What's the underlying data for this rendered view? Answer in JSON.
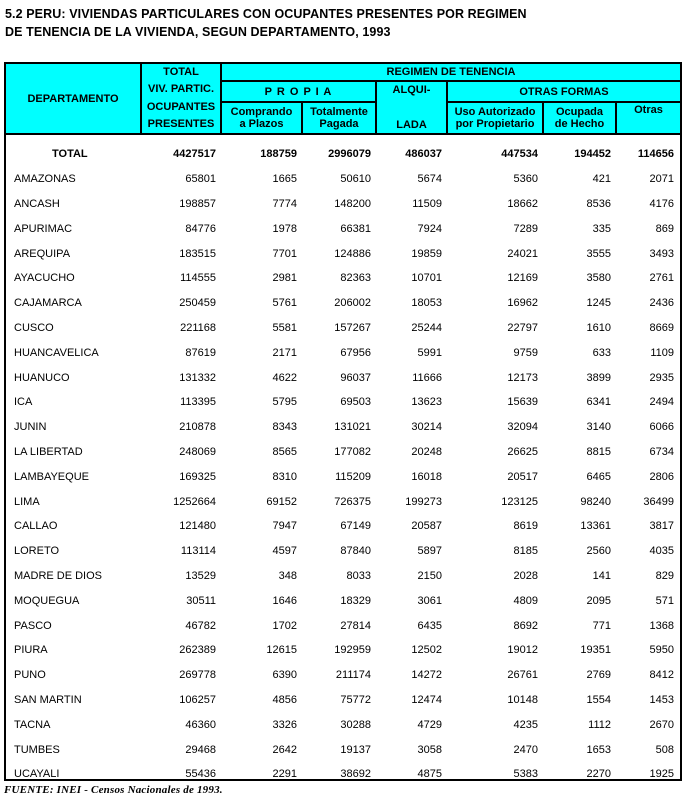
{
  "title": {
    "line1": "5.2 PERU: VIVIENDAS PARTICULARES CON OCUPANTES PRESENTES POR REGIMEN",
    "line2": "DE TENENCIA DE LA VIVIENDA, SEGUN DEPARTAMENTO, 1993"
  },
  "colors": {
    "header_bg": "#00FFFF",
    "border": "#000000",
    "body_bg": "#FFFFFF",
    "text": "#000000"
  },
  "table": {
    "header": {
      "departamento": "DEPARTAMENTO",
      "total_lines": [
        "TOTAL",
        "VIV. PARTIC.",
        "OCUPANTES",
        "PRESENTES"
      ],
      "regimen": "REGIMEN DE TENENCIA",
      "propia": "P R O P I A",
      "alquilada_top": "ALQUI-",
      "alquilada_bottom": "LADA",
      "otras_formas": "OTRAS FORMAS",
      "comprando_l1": "Comprando",
      "comprando_l2": "a Plazos",
      "totalmente_l1": "Totalmente",
      "totalmente_l2": "Pagada",
      "uso_l1": "Uso Autorizado",
      "uso_l2": "por Propietario",
      "ocupada_l1": "Ocupada",
      "ocupada_l2": "de Hecho",
      "otras": "Otras"
    },
    "total_row": {
      "label": "TOTAL",
      "values": [
        "4427517",
        "188759",
        "2996079",
        "486037",
        "447534",
        "194452",
        "114656"
      ]
    },
    "rows": [
      {
        "label": "AMAZONAS",
        "values": [
          "65801",
          "1665",
          "50610",
          "5674",
          "5360",
          "421",
          "2071"
        ]
      },
      {
        "label": "ANCASH",
        "values": [
          "198857",
          "7774",
          "148200",
          "11509",
          "18662",
          "8536",
          "4176"
        ]
      },
      {
        "label": "APURIMAC",
        "values": [
          "84776",
          "1978",
          "66381",
          "7924",
          "7289",
          "335",
          "869"
        ]
      },
      {
        "label": "AREQUIPA",
        "values": [
          "183515",
          "7701",
          "124886",
          "19859",
          "24021",
          "3555",
          "3493"
        ]
      },
      {
        "label": "AYACUCHO",
        "values": [
          "114555",
          "2981",
          "82363",
          "10701",
          "12169",
          "3580",
          "2761"
        ]
      },
      {
        "label": "CAJAMARCA",
        "values": [
          "250459",
          "5761",
          "206002",
          "18053",
          "16962",
          "1245",
          "2436"
        ]
      },
      {
        "label": "CUSCO",
        "values": [
          "221168",
          "5581",
          "157267",
          "25244",
          "22797",
          "1610",
          "8669"
        ]
      },
      {
        "label": "HUANCAVELICA",
        "values": [
          "87619",
          "2171",
          "67956",
          "5991",
          "9759",
          "633",
          "1109"
        ]
      },
      {
        "label": "HUANUCO",
        "values": [
          "131332",
          "4622",
          "96037",
          "11666",
          "12173",
          "3899",
          "2935"
        ]
      },
      {
        "label": "ICA",
        "values": [
          "113395",
          "5795",
          "69503",
          "13623",
          "15639",
          "6341",
          "2494"
        ]
      },
      {
        "label": "JUNIN",
        "values": [
          "210878",
          "8343",
          "131021",
          "30214",
          "32094",
          "3140",
          "6066"
        ]
      },
      {
        "label": "LA LIBERTAD",
        "values": [
          "248069",
          "8565",
          "177082",
          "20248",
          "26625",
          "8815",
          "6734"
        ]
      },
      {
        "label": "LAMBAYEQUE",
        "values": [
          "169325",
          "8310",
          "115209",
          "16018",
          "20517",
          "6465",
          "2806"
        ]
      },
      {
        "label": "LIMA",
        "values": [
          "1252664",
          "69152",
          "726375",
          "199273",
          "123125",
          "98240",
          "36499"
        ]
      },
      {
        "label": "CALLAO",
        "values": [
          "121480",
          "7947",
          "67149",
          "20587",
          "8619",
          "13361",
          "3817"
        ]
      },
      {
        "label": "LORETO",
        "values": [
          "113114",
          "4597",
          "87840",
          "5897",
          "8185",
          "2560",
          "4035"
        ]
      },
      {
        "label": "MADRE DE DIOS",
        "values": [
          "13529",
          "348",
          "8033",
          "2150",
          "2028",
          "141",
          "829"
        ]
      },
      {
        "label": "MOQUEGUA",
        "values": [
          "30511",
          "1646",
          "18329",
          "3061",
          "4809",
          "2095",
          "571"
        ]
      },
      {
        "label": "PASCO",
        "values": [
          "46782",
          "1702",
          "27814",
          "6435",
          "8692",
          "771",
          "1368"
        ]
      },
      {
        "label": "PIURA",
        "values": [
          "262389",
          "12615",
          "192959",
          "12502",
          "19012",
          "19351",
          "5950"
        ]
      },
      {
        "label": "PUNO",
        "values": [
          "269778",
          "6390",
          "211174",
          "14272",
          "26761",
          "2769",
          "8412"
        ]
      },
      {
        "label": "SAN MARTIN",
        "values": [
          "106257",
          "4856",
          "75772",
          "12474",
          "10148",
          "1554",
          "1453"
        ]
      },
      {
        "label": "TACNA",
        "values": [
          "46360",
          "3326",
          "30288",
          "4729",
          "4235",
          "1112",
          "2670"
        ]
      },
      {
        "label": "TUMBES",
        "values": [
          "29468",
          "2642",
          "19137",
          "3058",
          "2470",
          "1653",
          "508"
        ]
      },
      {
        "label": "UCAYALI",
        "values": [
          "55436",
          "2291",
          "38692",
          "4875",
          "5383",
          "2270",
          "1925"
        ]
      }
    ]
  },
  "footer": {
    "source": "FUENTE: INEI - Censos Nacionales de 1993."
  }
}
